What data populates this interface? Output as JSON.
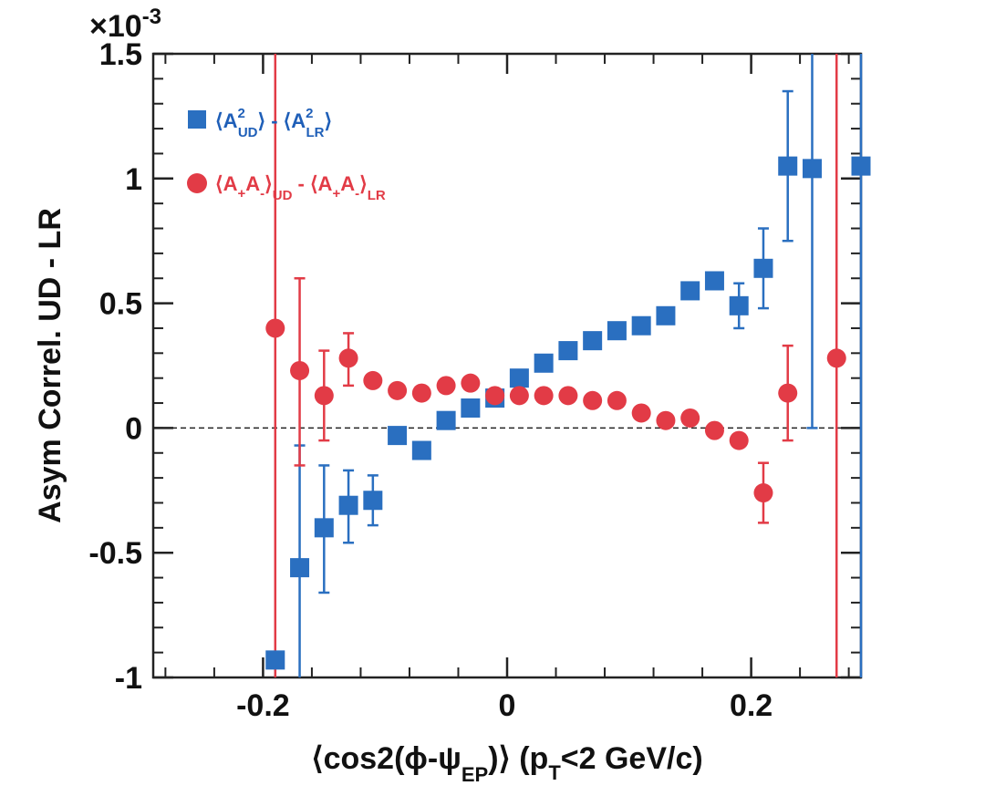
{
  "chart_data": {
    "type": "scatter",
    "xlabel": "⟨cos2(ϕ-ψ",
    "xlabel_sub": "EP",
    "xlabel_tail": ")⟩ (p",
    "xlabel_sub2": "T",
    "xlabel_end": "<2 GeV/c)",
    "ylabel": "Asym Correl. UD - LR",
    "y_multiplier": "×10",
    "y_multiplier_exp": "-3",
    "xlim": [
      -0.29,
      0.29
    ],
    "ylim": [
      -1.0,
      1.5
    ],
    "x_ticks": [
      {
        "v": -0.2,
        "label": "-0.2"
      },
      {
        "v": 0,
        "label": "0"
      },
      {
        "v": 0.2,
        "label": "0.2"
      }
    ],
    "y_ticks": [
      {
        "v": 1.5,
        "label": "1.5"
      },
      {
        "v": 1,
        "label": "1"
      },
      {
        "v": 0.5,
        "label": "0.5"
      },
      {
        "v": 0,
        "label": "0"
      },
      {
        "v": -0.5,
        "label": "-0.5"
      },
      {
        "v": -1,
        "label": "-1"
      }
    ],
    "zero_line": true,
    "legend_position": "top-left",
    "series": [
      {
        "legend": {
          "A": "A",
          "sup": "2",
          "sub1": "UD",
          "sub2": "LR"
        },
        "marker": "square",
        "color": "#2a6fc0",
        "points": [
          {
            "x": -0.19,
            "y": -0.93,
            "lo": -1.0,
            "hi": -0.93
          },
          {
            "x": -0.17,
            "y": -0.56,
            "lo": -1.0,
            "hi": -0.07
          },
          {
            "x": -0.15,
            "y": -0.4,
            "lo": -0.66,
            "hi": -0.15
          },
          {
            "x": -0.13,
            "y": -0.31,
            "lo": -0.46,
            "hi": -0.17
          },
          {
            "x": -0.11,
            "y": -0.29,
            "lo": -0.39,
            "hi": -0.19
          },
          {
            "x": -0.09,
            "y": -0.03
          },
          {
            "x": -0.07,
            "y": -0.09
          },
          {
            "x": -0.05,
            "y": 0.03
          },
          {
            "x": -0.03,
            "y": 0.08
          },
          {
            "x": -0.01,
            "y": 0.12
          },
          {
            "x": 0.01,
            "y": 0.2
          },
          {
            "x": 0.03,
            "y": 0.26
          },
          {
            "x": 0.05,
            "y": 0.31
          },
          {
            "x": 0.07,
            "y": 0.35
          },
          {
            "x": 0.09,
            "y": 0.39
          },
          {
            "x": 0.11,
            "y": 0.41
          },
          {
            "x": 0.13,
            "y": 0.45
          },
          {
            "x": 0.15,
            "y": 0.55
          },
          {
            "x": 0.17,
            "y": 0.59
          },
          {
            "x": 0.19,
            "y": 0.49,
            "lo": 0.4,
            "hi": 0.58
          },
          {
            "x": 0.21,
            "y": 0.64,
            "lo": 0.48,
            "hi": 0.8
          },
          {
            "x": 0.23,
            "y": 1.05,
            "lo": 0.75,
            "hi": 1.35
          },
          {
            "x": 0.25,
            "y": 1.04,
            "lo": 0.0,
            "hi": 1.5
          },
          {
            "x": 0.29,
            "y": 1.05,
            "lo": -1.0,
            "hi": 1.5
          }
        ]
      },
      {
        "legend": {
          "A": "A",
          "sub_plus": "+",
          "sub_minus": "-",
          "sub1": "UD",
          "sub2": "LR"
        },
        "marker": "circle",
        "color": "#e23b46",
        "points": [
          {
            "x": -0.19,
            "y": 0.4,
            "lo": -1.0,
            "hi": 1.5
          },
          {
            "x": -0.17,
            "y": 0.23,
            "lo": -0.15,
            "hi": 0.6
          },
          {
            "x": -0.15,
            "y": 0.13,
            "lo": -0.05,
            "hi": 0.31
          },
          {
            "x": -0.13,
            "y": 0.28,
            "lo": 0.17,
            "hi": 0.38
          },
          {
            "x": -0.11,
            "y": 0.19
          },
          {
            "x": -0.09,
            "y": 0.15
          },
          {
            "x": -0.07,
            "y": 0.14
          },
          {
            "x": -0.05,
            "y": 0.17
          },
          {
            "x": -0.03,
            "y": 0.18
          },
          {
            "x": -0.01,
            "y": 0.13
          },
          {
            "x": 0.01,
            "y": 0.13
          },
          {
            "x": 0.03,
            "y": 0.13
          },
          {
            "x": 0.05,
            "y": 0.13
          },
          {
            "x": 0.07,
            "y": 0.11
          },
          {
            "x": 0.09,
            "y": 0.11
          },
          {
            "x": 0.11,
            "y": 0.06
          },
          {
            "x": 0.13,
            "y": 0.03
          },
          {
            "x": 0.15,
            "y": 0.04
          },
          {
            "x": 0.17,
            "y": -0.01
          },
          {
            "x": 0.19,
            "y": -0.05
          },
          {
            "x": 0.21,
            "y": -0.26,
            "lo": -0.38,
            "hi": -0.14
          },
          {
            "x": 0.23,
            "y": 0.14,
            "lo": -0.05,
            "hi": 0.33
          },
          {
            "x": 0.27,
            "y": 0.28,
            "lo": -1.0,
            "hi": 1.5
          }
        ]
      }
    ]
  }
}
